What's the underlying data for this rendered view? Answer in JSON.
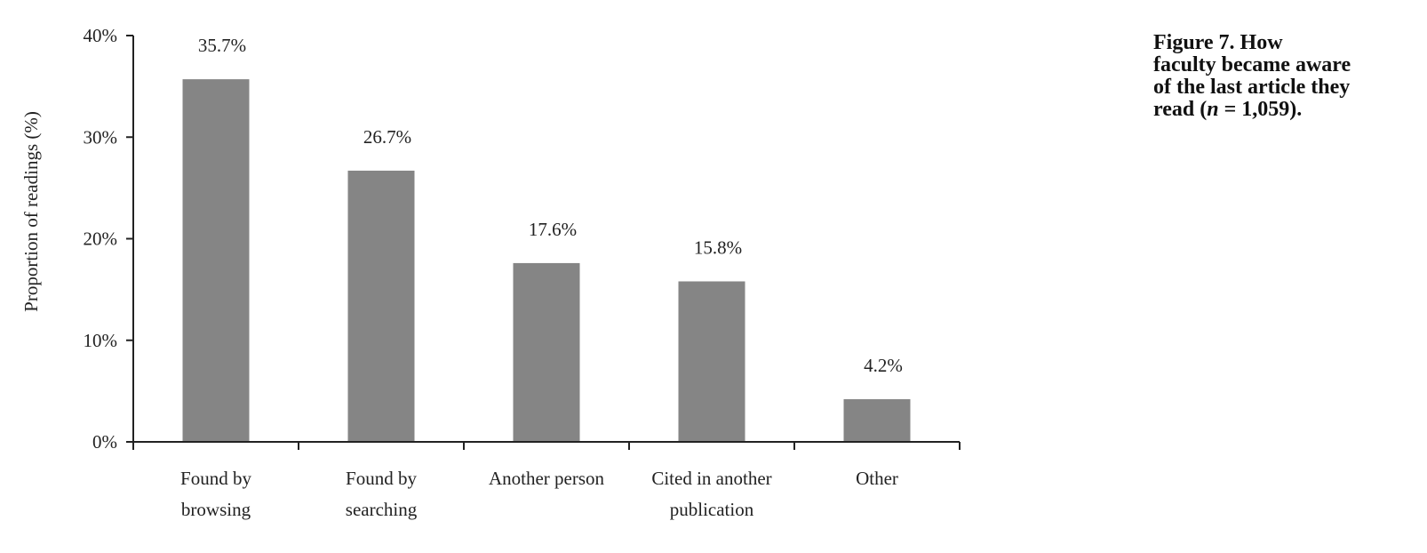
{
  "caption": {
    "line1": "Figure 7.  How",
    "line2": "faculty became aware",
    "line3": "of the last article they",
    "line4_a": "read (",
    "line4_n": "n",
    "line4_b": " = 1,059)."
  },
  "chart_data": {
    "type": "bar",
    "ylabel": "Proportion of readings (%)",
    "xlabel": "",
    "ylim": [
      0,
      40
    ],
    "yticks": [
      {
        "value": 0,
        "label": "0%"
      },
      {
        "value": 10,
        "label": "10%"
      },
      {
        "value": 20,
        "label": "20%"
      },
      {
        "value": 30,
        "label": "30%"
      },
      {
        "value": 40,
        "label": "40%"
      }
    ],
    "categories": [
      [
        "Found by",
        "browsing"
      ],
      [
        "Found by",
        "searching"
      ],
      [
        "Another person"
      ],
      [
        "Cited in another",
        "publication"
      ],
      [
        "Other"
      ]
    ],
    "values": [
      35.7,
      26.7,
      17.6,
      15.8,
      4.2
    ],
    "data_labels": [
      "35.7%",
      "26.7%",
      "17.6%",
      "15.8%",
      "4.2%"
    ],
    "bar_color": "#858585",
    "axis_color": "#222222",
    "grid": false,
    "legend": "none"
  }
}
